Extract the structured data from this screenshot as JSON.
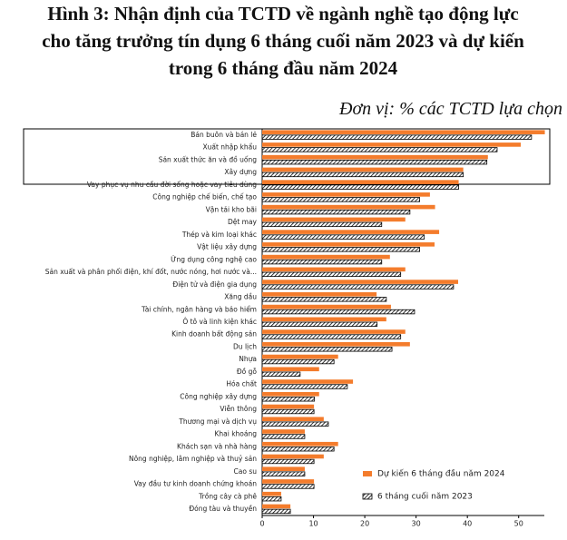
{
  "chart_data": {
    "type": "hbar",
    "title": [
      "Hình 3: Nhận định của TCTD về ngành nghề tạo động lực",
      "cho tăng trưởng tín dụng 6 tháng cuối năm 2023 và dự kiến",
      "trong 6 tháng đầu năm 2024"
    ],
    "subtitle": "Đơn vị: % các TCTD lựa chọn",
    "categories": [
      "Bán buôn và bán lẻ",
      "Xuất nhập khẩu",
      "Sản xuất thức ăn và đồ uống",
      "Xây dựng",
      "Vay phục vụ nhu cầu đời sống hoặc vay tiêu dùng",
      "Công nghiệp chế biến, chế tạo",
      "Vận tải kho bãi",
      "Dệt may",
      "Thép và kim loại khác",
      "Vật liệu xây dựng",
      "Ứng dụng công nghệ cao",
      "Sản xuất và phân phối điện, khí đốt, nước nóng, hơi nước và...",
      "Điện tử và điện gia dụng",
      "Xăng dầu",
      "Tài chính, ngân hàng và bảo hiểm",
      "Ô tô và linh kiện khác",
      "Kinh doanh bất động sản",
      "Du lịch",
      "Nhựa",
      "Đồ gỗ",
      "Hóa chất",
      "Công nghiệp xây dựng",
      "Viễn thông",
      "Thương mại và dịch vụ",
      "Khai khoáng",
      "Khách sạn và nhà hàng",
      "Nông nghiệp, lâm nghiệp và thuỷ sản",
      "Cao su",
      "Vay đầu tư kinh doanh chứng khoán",
      "Trồng cây cà phê",
      "Đóng tàu và thuyền"
    ],
    "series": [
      {
        "name": "Dự kiến 6 tháng đầu năm 2024",
        "color": "#f47c2c",
        "pattern": "solid",
        "values": [
          55.1,
          50.4,
          44,
          39.2,
          38.3,
          32.7,
          33.7,
          27.9,
          34.5,
          33.6,
          24.9,
          27.9,
          38.2,
          22.3,
          25.1,
          24.2,
          27.9,
          28.8,
          14.8,
          11.1,
          17.7,
          11.1,
          10.1,
          12,
          8.3,
          14.8,
          12,
          8.3,
          10.1,
          3.7,
          5.5
        ]
      },
      {
        "name": "6 tháng cuối năm 2023",
        "color": "#000000",
        "pattern": "hatch",
        "values": [
          52.5,
          45.8,
          43.8,
          39.2,
          38.3,
          30.7,
          28.8,
          23.3,
          31.6,
          30.7,
          23.3,
          27,
          37.3,
          24.2,
          29.7,
          22.4,
          27,
          25.3,
          14,
          7.4,
          16.6,
          10.2,
          10.1,
          12.9,
          8.3,
          14,
          10.1,
          8.3,
          10.1,
          3.7,
          5.5
        ]
      }
    ],
    "xlim": [
      0,
      55
    ],
    "xticks": [
      0,
      10,
      20,
      30,
      40,
      50
    ]
  }
}
